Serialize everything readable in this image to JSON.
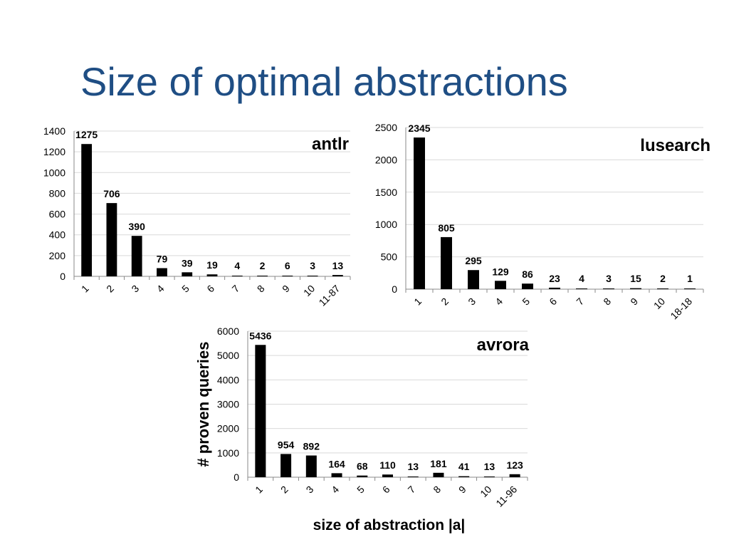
{
  "slide": {
    "title": "Size of optimal abstractions"
  },
  "chart_data": [
    {
      "type": "bar",
      "title": "antlr",
      "xlabel": "",
      "ylabel": "",
      "ylim": [
        0,
        1400
      ],
      "yticks": [
        0,
        200,
        400,
        600,
        800,
        1000,
        1200,
        1400
      ],
      "grid": true,
      "categories": [
        "1",
        "2",
        "3",
        "4",
        "5",
        "6",
        "7",
        "8",
        "9",
        "10",
        "11-87"
      ],
      "values": [
        1275,
        706,
        390,
        79,
        39,
        19,
        4,
        2,
        6,
        3,
        13
      ]
    },
    {
      "type": "bar",
      "title": "lusearch",
      "xlabel": "",
      "ylabel": "",
      "ylim": [
        0,
        2500
      ],
      "yticks": [
        0,
        500,
        1000,
        1500,
        2000,
        2500
      ],
      "grid": true,
      "categories": [
        "1",
        "2",
        "3",
        "4",
        "5",
        "6",
        "7",
        "8",
        "9",
        "10",
        "18-18"
      ],
      "values": [
        2345,
        805,
        295,
        129,
        86,
        23,
        4,
        3,
        15,
        2,
        1
      ]
    },
    {
      "type": "bar",
      "title": "avrora",
      "xlabel": "size of abstraction |a|",
      "ylabel": "# proven queries",
      "ylim": [
        0,
        6000
      ],
      "yticks": [
        0,
        1000,
        2000,
        3000,
        4000,
        5000,
        6000
      ],
      "grid": true,
      "categories": [
        "1",
        "2",
        "3",
        "4",
        "5",
        "6",
        "7",
        "8",
        "9",
        "10",
        "11-96"
      ],
      "values": [
        5436,
        954,
        892,
        164,
        68,
        110,
        13,
        181,
        41,
        13,
        123
      ]
    }
  ]
}
